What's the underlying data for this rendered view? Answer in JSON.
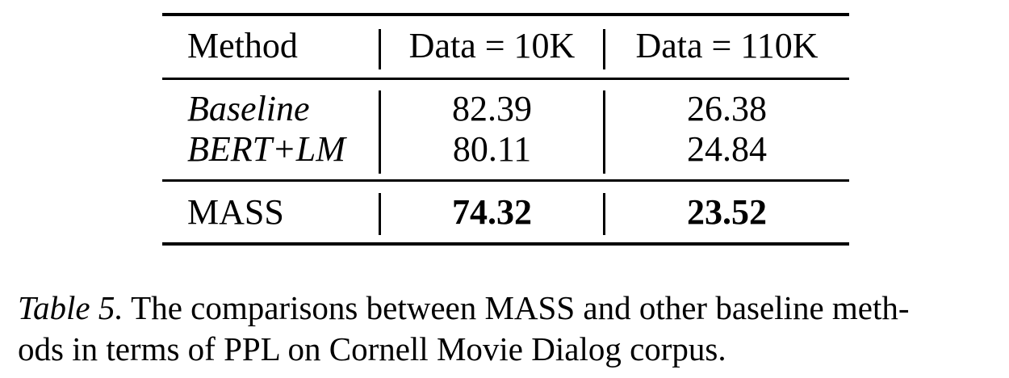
{
  "table": {
    "header": {
      "method": "Method",
      "col1": "Data = 10K",
      "col2": "Data = 110K"
    },
    "rows": [
      {
        "method": "Baseline",
        "v1": "82.39",
        "v2": "26.38",
        "style": "italic"
      },
      {
        "method": "BERT+LM",
        "v1": "80.11",
        "v2": "24.84",
        "style": "italic"
      }
    ],
    "highlight_row": {
      "method": "MASS",
      "v1": "74.32",
      "v2": "23.52"
    }
  },
  "caption": {
    "label": "Table 5.",
    "line1": " The comparisons between MASS and other baseline meth-",
    "line2": "ods in terms of PPL on Cornell Movie Dialog corpus."
  }
}
